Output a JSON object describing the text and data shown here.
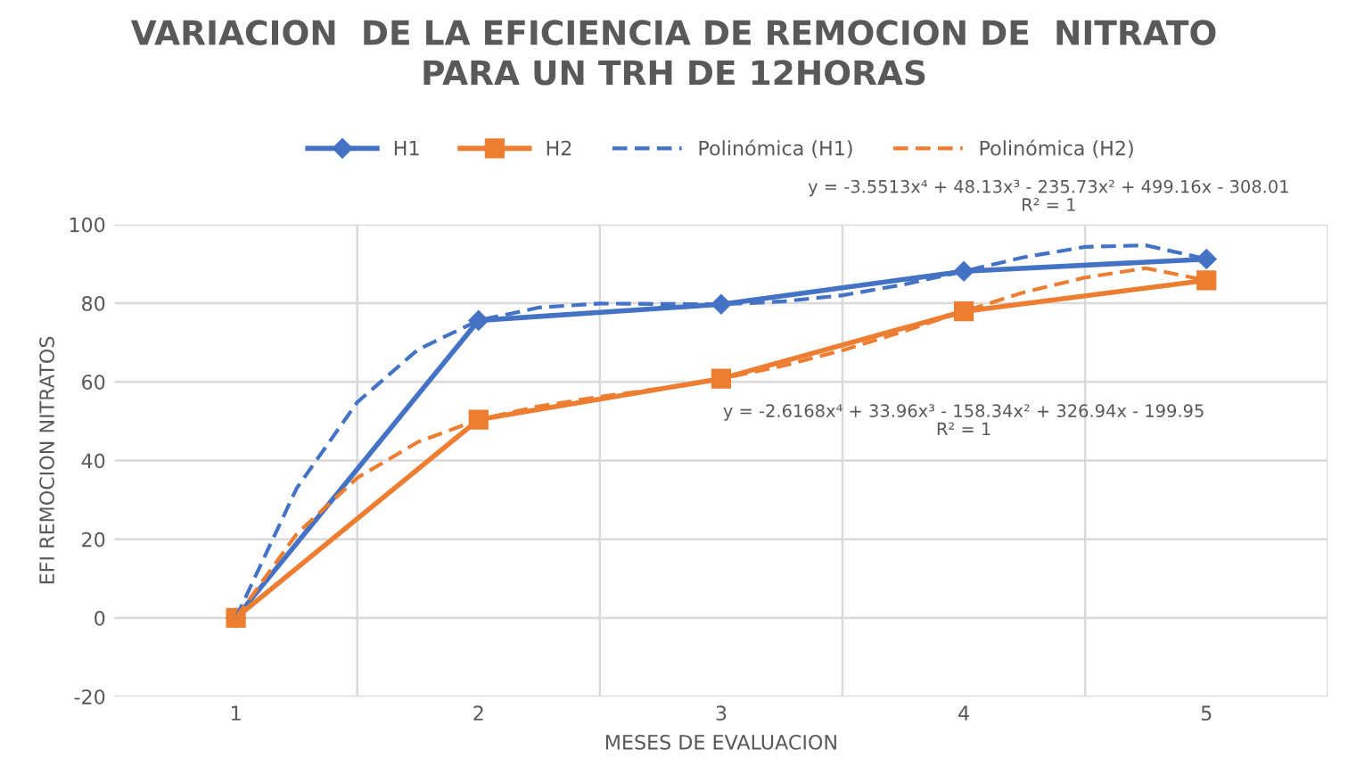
{
  "chart_data": {
    "type": "line",
    "title": "VARIACION  DE LA EFICIENCIA DE REMOCION DE  NITRATO\nPARA UN TRH DE 12HORAS",
    "xlabel": "MESES DE EVALUACION",
    "ylabel": "EFI REMOCION NITRATOS",
    "xlim": [
      0.5,
      5.5
    ],
    "xticks": [
      1,
      2,
      3,
      4,
      5,
      {
        "value": 1.5,
        "label": null
      },
      {
        "value": 2.5,
        "label": null
      },
      {
        "value": 3.5,
        "label": null
      },
      {
        "value": 4.5,
        "label": null
      },
      {
        "value": 5.5,
        "label": null
      }
    ],
    "ylim": [
      -20,
      100
    ],
    "yticks": [
      -20,
      0,
      20,
      40,
      60,
      80,
      100
    ],
    "grid": true,
    "legend": "top",
    "series": [
      {
        "name": "H1",
        "color": "#4472c4",
        "marker": "diamond",
        "line_style": "solid",
        "x": [
          1,
          2,
          3,
          4,
          5
        ],
        "values": [
          0,
          75.6,
          79.7,
          88.1,
          91.2
        ]
      },
      {
        "name": "H2",
        "color": "#ed7d31",
        "marker": "square",
        "line_style": "solid",
        "x": [
          1,
          2,
          3,
          4,
          5
        ],
        "values": [
          0,
          50.4,
          60.8,
          77.9,
          85.8
        ]
      },
      {
        "name": "Polinómica (H1)",
        "color": "#4472c4",
        "marker": "none",
        "line_style": "dashed",
        "x": [
          1,
          1.25,
          1.5,
          1.75,
          2,
          2.25,
          2.5,
          2.75,
          3,
          3.25,
          3.5,
          3.75,
          4,
          4.25,
          4.5,
          4.75,
          5
        ],
        "values": [
          0,
          32.9,
          54.8,
          68.2,
          75.6,
          78.9,
          79.9,
          79.8,
          79.7,
          80.4,
          82.0,
          84.7,
          88.1,
          91.7,
          94.3,
          94.7,
          91.2
        ]
      },
      {
        "name": "Polinómica (H2)",
        "color": "#ed7d31",
        "marker": "none",
        "line_style": "dashed",
        "x": [
          1,
          1.25,
          1.5,
          1.75,
          2,
          2.25,
          2.5,
          2.75,
          3,
          3.25,
          3.5,
          3.75,
          4,
          4.25,
          4.5,
          4.75,
          5
        ],
        "values": [
          0,
          21.3,
          35.6,
          44.7,
          50.4,
          53.8,
          56.2,
          58.3,
          60.8,
          64.0,
          68.0,
          72.8,
          77.9,
          82.8,
          86.5,
          88.9,
          85.8
        ]
      }
    ],
    "annotations": [
      "y = -3.5513x⁴ + 48.13x³ - 235.73x² + 499.16x - 308.01\nR² = 1",
      "y = -2.6168x⁴ + 33.96x³ - 158.34x² + 326.94x - 199.95\nR² = 1"
    ]
  }
}
